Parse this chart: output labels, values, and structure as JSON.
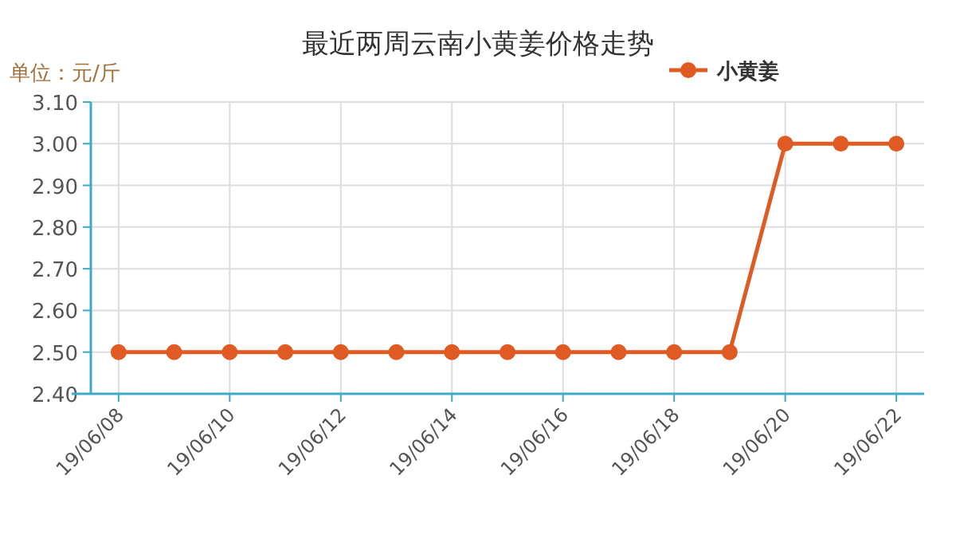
{
  "chart_data": {
    "type": "line",
    "title": "最近两周云南小黄姜价格走势",
    "ylabel": "单位：元/斤",
    "categories": [
      "19/06/08",
      null,
      "19/06/10",
      null,
      "19/06/12",
      null,
      "19/06/14",
      null,
      "19/06/16",
      null,
      "19/06/18",
      null,
      "19/06/20",
      null,
      "19/06/22"
    ],
    "series": [
      {
        "name": "小黄姜",
        "color": "#e05a23",
        "values": [
          2.5,
          2.5,
          2.5,
          2.5,
          2.5,
          2.5,
          2.5,
          2.5,
          2.5,
          2.5,
          2.5,
          2.5,
          3.0,
          3.0,
          3.0
        ]
      }
    ],
    "ylim": [
      2.4,
      3.1
    ],
    "yticks": [
      {
        "value": 2.4,
        "label": "2.40"
      },
      {
        "value": 2.5,
        "label": "2.50"
      },
      {
        "value": 2.6,
        "label": "2.60"
      },
      {
        "value": 2.7,
        "label": "2.70"
      },
      {
        "value": 2.8,
        "label": "2.80"
      },
      {
        "value": 2.9,
        "label": "2.90"
      },
      {
        "value": 3.0,
        "label": "3.00"
      },
      {
        "value": 3.1,
        "label": "3.10"
      }
    ],
    "grid": true,
    "legend": "top right",
    "marker": "circle"
  }
}
